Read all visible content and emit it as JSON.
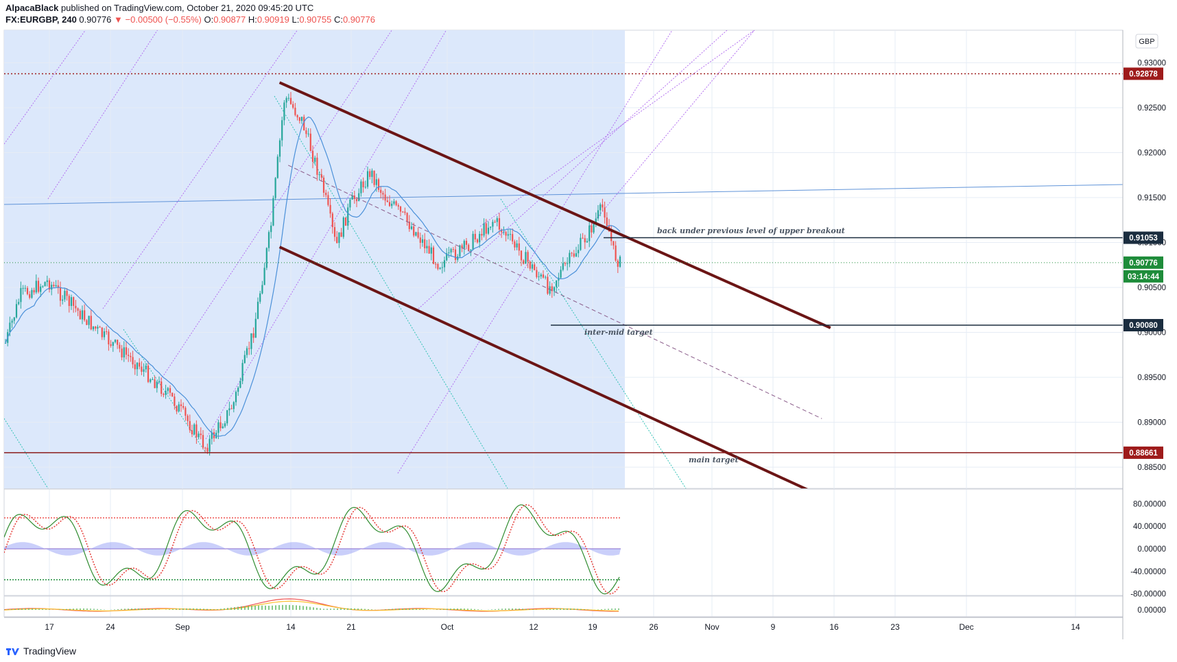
{
  "header": {
    "author": "AlpacaBlack",
    "published_text": "published on TradingView.com, October 21, 2020 09:45:20 UTC",
    "symbol": "FX:EURGBP, 240",
    "last": "0.90776",
    "change_arrow": "▼",
    "change": "−0.00500 (−0.55%)",
    "ohlc": [
      {
        "label": "O:",
        "value": "0.90877"
      },
      {
        "label": "H:",
        "value": "0.90919"
      },
      {
        "label": "L:",
        "value": "0.90755"
      },
      {
        "label": "C:",
        "value": "0.90776"
      }
    ]
  },
  "currency_button": "GBP",
  "footer": {
    "brand": "TradingView",
    "logo_icon": "tradingview-logo-icon"
  },
  "colors": {
    "bg": "#dce8fb",
    "channel": "#6b1515",
    "candle_up": "#26a69a",
    "candle_down": "#ef5350",
    "ma": "#4a90d9",
    "fib_violet": "#b36ff0",
    "green_tag": "#1e8c3a",
    "red_tag": "#9e1b1b",
    "navy_tag": "#1b2d3f"
  },
  "chart_data": {
    "type": "candlestick",
    "symbol": "FX:EURGBP",
    "timeframe": "240",
    "price_axis": {
      "ticks": [
        "0.93000",
        "0.92500",
        "0.92000",
        "0.91500",
        "0.91000",
        "0.90500",
        "0.90000",
        "0.89500",
        "0.89000",
        "0.88500"
      ],
      "range": [
        0.8815,
        0.9345
      ]
    },
    "time_axis": {
      "ticks": [
        "17",
        "24",
        "Sep",
        "14",
        "21",
        "Oct",
        "12",
        "19",
        "26",
        "Nov",
        "9",
        "16",
        "23",
        "Dec",
        "14"
      ]
    },
    "price_tags": [
      {
        "value": "0.92878",
        "style": "red"
      },
      {
        "value": "0.91053",
        "style": "navy"
      },
      {
        "value": "0.90776",
        "style": "green"
      },
      {
        "value": "03:14:44",
        "style": "green"
      },
      {
        "value": "0.90080",
        "style": "navy"
      },
      {
        "value": "0.88661",
        "style": "red"
      }
    ],
    "annotations": [
      {
        "text": "back under previous level of upper breakout",
        "price": 0.9105
      },
      {
        "text": "inter-mid target",
        "price": 0.9008
      },
      {
        "text": "main target",
        "price": 0.8866
      }
    ],
    "horizontal_levels": [
      0.92878,
      0.91053,
      0.9008,
      0.88661
    ],
    "channel_lines": [
      {
        "name": "upper",
        "from": {
          "date": "2020-09-11",
          "price": 0.9278
        },
        "to": {
          "date": "2020-11-14",
          "price": 0.9005
        }
      },
      {
        "name": "lower",
        "from": {
          "date": "2020-09-11",
          "price": 0.9095
        },
        "to": {
          "date": "2020-11-12",
          "price": 0.8822
        }
      }
    ],
    "stoch_axis": {
      "ticks": [
        "80.00000",
        "40.00000",
        "0.00000",
        "-40.00000",
        "-80.00000"
      ]
    },
    "macd_axis": {
      "ticks": [
        "0.00000"
      ]
    }
  }
}
